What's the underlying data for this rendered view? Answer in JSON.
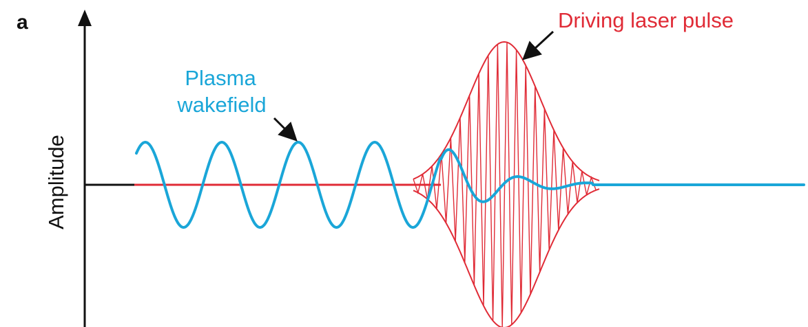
{
  "figure": {
    "panel_letter": "a",
    "y_axis_label": "Amplitude",
    "wake_label_line1": "Plasma",
    "wake_label_line2": "wakefield",
    "laser_label": "Driving laser pulse"
  },
  "colors": {
    "axis": "#111111",
    "wakefield": "#1aa6d8",
    "laser": "#e02b36",
    "text": "#111111"
  },
  "signals": {
    "wakefield": {
      "oscillations_before_pulse": 5,
      "decays_after_pulse": true
    },
    "laser_pulse": {
      "envelope": "gaussian",
      "carrier_visible": true
    }
  }
}
